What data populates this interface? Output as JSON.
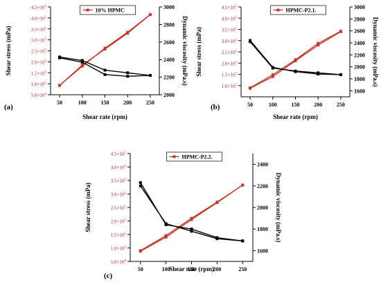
{
  "colors": {
    "shear_stress": "#c0392b",
    "viscosity": "#000000",
    "axis": "#000000",
    "tick_left": "#b03030"
  },
  "chart_data": [
    {
      "type": "line",
      "panel_label": "(a)",
      "legend": "10% HPMC",
      "legend_placement": "top-center",
      "xlabel": "Shear rate (rpm)",
      "ylabel_left": "Shear stress (mPa)",
      "ylabel_right": "Dynamic viscosity (mPa.s)",
      "x": [
        50,
        100,
        150,
        200,
        250
      ],
      "xlim": [
        30,
        270
      ],
      "xticks": [
        "50",
        "100",
        "150",
        "200",
        "250"
      ],
      "ylim_left": [
        50000,
        450000
      ],
      "yticks_left": [
        {
          "v": 50000,
          "base": "5.0×10",
          "exp": "4"
        },
        {
          "v": 100000,
          "base": "1.0×10",
          "exp": "5"
        },
        {
          "v": 150000,
          "base": "1.5×10",
          "exp": "5"
        },
        {
          "v": 200000,
          "base": "2.0×10",
          "exp": "5"
        },
        {
          "v": 250000,
          "base": "2.5×10",
          "exp": "5"
        },
        {
          "v": 300000,
          "base": "3.0×10",
          "exp": "5"
        },
        {
          "v": 350000,
          "base": "3.5×10",
          "exp": "5"
        },
        {
          "v": 400000,
          "base": "4.0×10",
          "exp": "5"
        },
        {
          "v": 450000,
          "base": "4.5×10",
          "exp": "5"
        }
      ],
      "ylim_right": [
        2000,
        3000
      ],
      "yticks_right": [
        "2000",
        "2200",
        "2400",
        "2600",
        "2800",
        "3000"
      ],
      "series": [
        {
          "axis": "left",
          "kind": "stress",
          "values": [
            92000,
            185000,
            258000,
            330000,
            415000
          ]
        },
        {
          "axis": "left",
          "kind": "stress",
          "values": [
            93000,
            180000,
            262000,
            335000,
            415000
          ]
        },
        {
          "axis": "right",
          "kind": "viscosity",
          "values": [
            2430,
            2390,
            2280,
            2250,
            2220
          ]
        },
        {
          "axis": "right",
          "kind": "viscosity",
          "values": [
            2420,
            2370,
            2230,
            2210,
            2220
          ]
        }
      ]
    },
    {
      "type": "line",
      "panel_label": "(b)",
      "legend": "HPMC-P2.1.",
      "legend_placement": "top-center",
      "xlabel": "Shear rate (rpm)",
      "ylabel_left": "Shear stress (mPa)",
      "ylabel_right": "Dynamic viscosity (mPa.s)",
      "x": [
        50,
        100,
        150,
        200,
        250
      ],
      "xlim": [
        30,
        270
      ],
      "xticks": [
        "50",
        "100",
        "150",
        "200",
        "250"
      ],
      "ylim_left": [
        50000,
        450000
      ],
      "yticks_left": [
        {
          "v": 100000,
          "base": "1.0×10",
          "exp": "5"
        },
        {
          "v": 150000,
          "base": "1.5×10",
          "exp": "5"
        },
        {
          "v": 200000,
          "base": "2.0×10",
          "exp": "5"
        },
        {
          "v": 250000,
          "base": "2.5×10",
          "exp": "5"
        },
        {
          "v": 300000,
          "base": "3.0×10",
          "exp": "5"
        },
        {
          "v": 350000,
          "base": "3.5×10",
          "exp": "5"
        },
        {
          "v": 400000,
          "base": "4.0×10",
          "exp": "5"
        },
        {
          "v": 450000,
          "base": "4.5×10",
          "exp": "5"
        }
      ],
      "ylim_right": [
        1500,
        3000
      ],
      "yticks_right": [
        "1600",
        "1800",
        "2000",
        "2200",
        "2400",
        "2600",
        "2800",
        "3000"
      ],
      "series": [
        {
          "axis": "left",
          "kind": "stress",
          "values": [
            88000,
            140000,
            210000,
            280000,
            340000
          ]
        },
        {
          "axis": "left",
          "kind": "stress",
          "values": [
            90000,
            148000,
            215000,
            288000,
            342000
          ]
        },
        {
          "axis": "right",
          "kind": "viscosity",
          "values": [
            2440,
            1990,
            1920,
            1880,
            1870
          ]
        },
        {
          "axis": "right",
          "kind": "viscosity",
          "values": [
            2420,
            1980,
            1930,
            1900,
            1870
          ]
        }
      ]
    },
    {
      "type": "line",
      "panel_label": "(c)",
      "legend": "HPMC-P2.2.",
      "legend_placement": "top-center",
      "xlabel": "Shear rate (rpm)",
      "ylabel_left": "Shear stress (mPa)",
      "ylabel_right": "Dynamic viscosity (mPa.s)",
      "x": [
        50,
        100,
        150,
        200,
        250
      ],
      "xlim": [
        30,
        270
      ],
      "xticks": [
        "50",
        "100",
        "150",
        "200",
        "250"
      ],
      "ylim_left": [
        50000,
        450000
      ],
      "yticks_left": [
        {
          "v": 50000,
          "base": "5.0×10",
          "exp": "4"
        },
        {
          "v": 100000,
          "base": "1.0×10",
          "exp": "5"
        },
        {
          "v": 150000,
          "base": "1.5×10",
          "exp": "5"
        },
        {
          "v": 200000,
          "base": "2.0×10",
          "exp": "5"
        },
        {
          "v": 250000,
          "base": "2.5×10",
          "exp": "5"
        },
        {
          "v": 300000,
          "base": "3.0×10",
          "exp": "5"
        },
        {
          "v": 350000,
          "base": "3.5×10",
          "exp": "5"
        },
        {
          "v": 400000,
          "base": "4.0×10",
          "exp": "5"
        },
        {
          "v": 450000,
          "base": "4.5×10",
          "exp": "5"
        }
      ],
      "ylim_right": [
        1500,
        2500
      ],
      "yticks_right": [
        "1600",
        "1800",
        "2000",
        "2200",
        "2400"
      ],
      "series": [
        {
          "axis": "left",
          "kind": "stress",
          "values": [
            88000,
            140000,
            205000,
            268000,
            333000
          ]
        },
        {
          "axis": "left",
          "kind": "stress",
          "values": [
            90000,
            146000,
            210000,
            270000,
            333000
          ]
        },
        {
          "axis": "right",
          "kind": "viscosity",
          "values": [
            2230,
            1840,
            1800,
            1720,
            1690
          ]
        },
        {
          "axis": "right",
          "kind": "viscosity",
          "values": [
            2200,
            1850,
            1780,
            1710,
            1690
          ]
        }
      ]
    }
  ]
}
